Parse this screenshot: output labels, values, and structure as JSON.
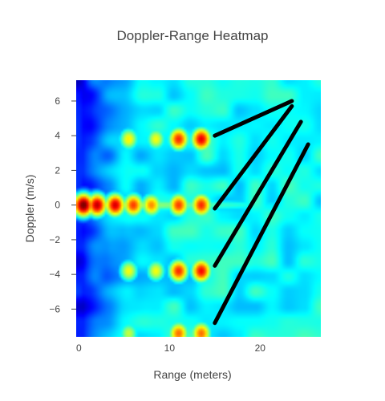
{
  "chart_data": {
    "type": "heatmap",
    "title": "Doppler-Range Heatmap",
    "xlabel": "Range (meters)",
    "ylabel": "Doppler (m/s)",
    "xlim": [
      -0.3,
      26.7
    ],
    "ylim": [
      -7.6,
      7.2
    ],
    "x_ticks": [
      0,
      10,
      20
    ],
    "y_ticks": [
      6,
      4,
      2,
      0,
      -2,
      -4,
      -6
    ],
    "x_tick_labels": [
      "0",
      "10",
      "20"
    ],
    "y_tick_labels": [
      "6",
      "4",
      "2",
      "0",
      "−2",
      "−4",
      "−6"
    ],
    "colorscale": [
      "#00007f",
      "#0000ff",
      "#007fff",
      "#00ffff",
      "#7fff7f",
      "#ffff00",
      "#ff7f00",
      "#ff0000",
      "#7f0000"
    ],
    "hot_spots": [
      {
        "x": 0.5,
        "y": 0,
        "intensity": 1.0
      },
      {
        "x": 2.0,
        "y": 0,
        "intensity": 0.92
      },
      {
        "x": 4.0,
        "y": 0,
        "intensity": 0.9
      },
      {
        "x": 6.0,
        "y": 0,
        "intensity": 0.8
      },
      {
        "x": 8.0,
        "y": 0,
        "intensity": 0.72
      },
      {
        "x": 11.0,
        "y": 0,
        "intensity": 0.8
      },
      {
        "x": 13.5,
        "y": 0,
        "intensity": 0.82
      },
      {
        "x": 11.0,
        "y": 3.8,
        "intensity": 0.82
      },
      {
        "x": 13.5,
        "y": 3.8,
        "intensity": 0.88
      },
      {
        "x": 5.5,
        "y": 3.8,
        "intensity": 0.62
      },
      {
        "x": 8.5,
        "y": 3.8,
        "intensity": 0.6
      },
      {
        "x": 11.0,
        "y": -3.8,
        "intensity": 0.82
      },
      {
        "x": 13.5,
        "y": -3.8,
        "intensity": 0.86
      },
      {
        "x": 5.5,
        "y": -3.8,
        "intensity": 0.6
      },
      {
        "x": 8.5,
        "y": -3.8,
        "intensity": 0.6
      },
      {
        "x": 11.0,
        "y": -7.4,
        "intensity": 0.75
      },
      {
        "x": 13.5,
        "y": -7.4,
        "intensity": 0.75
      },
      {
        "x": 5.5,
        "y": -7.4,
        "intensity": 0.55
      }
    ],
    "overlay_lines": [
      {
        "x": [
          15,
          23.5
        ],
        "y": [
          4.0,
          6.0
        ]
      },
      {
        "x": [
          15,
          23.5
        ],
        "y": [
          -0.2,
          5.7
        ]
      },
      {
        "x": [
          15,
          24.5
        ],
        "y": [
          -3.5,
          4.8
        ]
      },
      {
        "x": [
          15,
          25.3
        ],
        "y": [
          -6.8,
          3.5
        ]
      }
    ],
    "overlay_color": "#000000",
    "grid": false
  }
}
